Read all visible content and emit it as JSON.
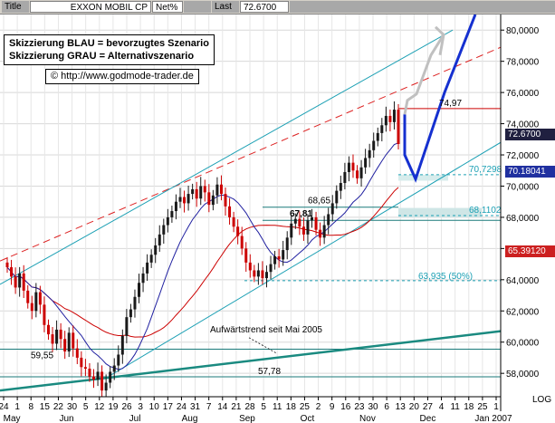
{
  "titlebar": {
    "title_label": "Title",
    "symbol": "EXXON MOBIL CP",
    "mode": "Net%",
    "last_label": "Last",
    "last_value": "72.6700"
  },
  "legend": {
    "line1": "Skizzierung BLAU = bevorzugtes Szenario",
    "line2": "Skizzierung GRAU = Alternativszenario"
  },
  "copyright": {
    "symbol": "©",
    "url": "http://www.godmode-trader.de"
  },
  "price_tags": {
    "current": "72.6700",
    "ma_fast": "70.18041",
    "ma_slow": "65.39120"
  },
  "colors": {
    "bull_candle": "#1a1a1a",
    "bear_candle": "#cc0000",
    "trend_cyan": "#1ca0b4",
    "ma_blue": "#2020a0",
    "ma_red": "#cc0000",
    "scenario_blue": "#1530d0",
    "scenario_grey": "#c0c0c0",
    "tag_blue": "#2030a0",
    "tag_red": "#cc2020",
    "tag_dark": "#202040"
  },
  "annotations": {
    "resistance": "74,97",
    "target1": "70,7298",
    "target2": "68,1102",
    "level_6865": "68,65",
    "level_6781": "67,81",
    "fib": "63,935 (50%)",
    "level_5955": "59,55",
    "level_5778": "57,78",
    "trend_label": "Aufwärtstrend seit Mai 2005"
  },
  "chart_data": {
    "type": "candlestick",
    "instrument": "EXXON MOBIL CP",
    "ylim": [
      56.5,
      81
    ],
    "y_ticks": [
      "80,0000",
      "78,0000",
      "76,0000",
      "74,0000",
      "72,0000",
      "70,0000",
      "68,0000",
      "66,0000",
      "64,0000",
      "62,0000",
      "60,0000",
      "58,0000"
    ],
    "y_tick_values": [
      80,
      78,
      76,
      74,
      72,
      70,
      68,
      66,
      64,
      62,
      60,
      58
    ],
    "x_day_labels": [
      "24",
      "1",
      "8",
      "15",
      "22",
      "30",
      "5",
      "12",
      "19",
      "26",
      "3",
      "10",
      "17",
      "24",
      "31",
      "7",
      "14",
      "21",
      "28",
      "5",
      "11",
      "18",
      "25",
      "2",
      "9",
      "16",
      "23",
      "30",
      "6",
      "13",
      "20",
      "27",
      "4",
      "11",
      "18",
      "25",
      "1"
    ],
    "x_month_labels": [
      "May",
      "Jun",
      "Jul",
      "Aug",
      "Sep",
      "Oct",
      "Nov",
      "Dec",
      "Jan 2007"
    ],
    "log_label": "LOG",
    "closes": [
      64.8,
      64.2,
      63.5,
      64.4,
      63.3,
      62.5,
      62.0,
      63.2,
      62.4,
      61.1,
      60.5,
      59.9,
      60.8,
      60.2,
      59.4,
      60.6,
      59.6,
      59.0,
      58.4,
      58.3,
      57.8,
      57.6,
      58.1,
      56.9,
      57.4,
      58.1,
      58.5,
      59.2,
      60.4,
      61.6,
      62.1,
      62.9,
      63.8,
      64.4,
      65.1,
      65.6,
      66.2,
      66.9,
      67.5,
      68.0,
      68.4,
      69.0,
      69.3,
      68.9,
      69.5,
      69.8,
      69.2,
      70.0,
      69.6,
      68.8,
      69.4,
      70.1,
      69.5,
      68.7,
      68.0,
      67.4,
      66.8,
      66.0,
      65.1,
      64.6,
      64.2,
      64.6,
      64.1,
      64.5,
      65.0,
      65.5,
      65.3,
      65.9,
      66.7,
      67.6,
      67.9,
      67.4,
      66.9,
      67.8,
      68.0,
      67.2,
      66.7,
      67.5,
      68.2,
      68.9,
      69.7,
      70.2,
      70.9,
      71.5,
      71.0,
      70.5,
      71.2,
      71.8,
      72.3,
      72.9,
      73.4,
      73.9,
      74.5,
      74.1,
      74.9,
      72.7
    ],
    "ma_fast_value": 70.18041,
    "ma_slow_value": 65.3912,
    "horizontal_levels": [
      74.97,
      70.7298,
      68.1102,
      68.65,
      67.81,
      63.935,
      59.55,
      57.78
    ],
    "scenarios": {
      "blue": "pullback to ~70.5 then rally above 80",
      "grey": "continuation to ~79.5"
    }
  }
}
